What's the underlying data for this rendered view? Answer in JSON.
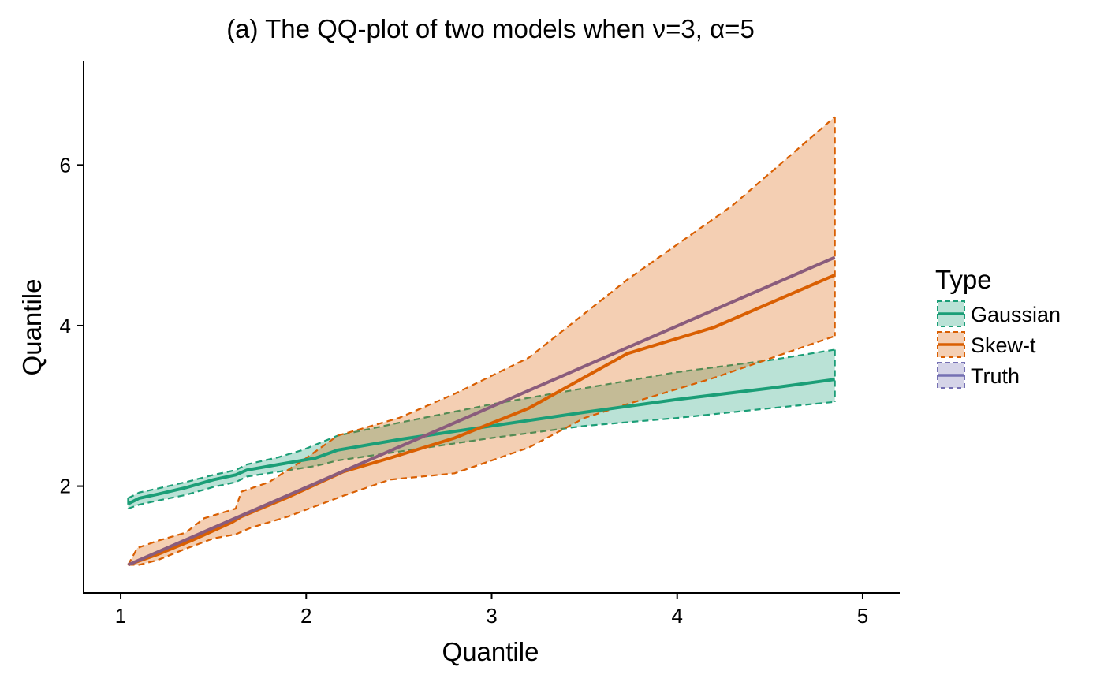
{
  "chart_data": {
    "type": "line",
    "title": "(a) The QQ-plot of two models when ν=3, α=5",
    "xlabel": "Quantile",
    "ylabel": "Quantile",
    "xlim": [
      0.8,
      5.2
    ],
    "ylim": [
      0.67,
      7.3
    ],
    "xticks": [
      1,
      2,
      3,
      4,
      5
    ],
    "yticks": [
      2,
      4,
      6
    ],
    "grid": false,
    "legend": {
      "title": "Type",
      "position": "right"
    },
    "series": [
      {
        "name": "Gaussian",
        "color": "#1b9e77",
        "fill_opacity": 0.3,
        "line": [
          [
            1.04,
            1.78
          ],
          [
            1.1,
            1.85
          ],
          [
            1.2,
            1.9
          ],
          [
            1.35,
            1.98
          ],
          [
            1.5,
            2.08
          ],
          [
            1.62,
            2.14
          ],
          [
            1.68,
            2.2
          ],
          [
            1.85,
            2.27
          ],
          [
            2.05,
            2.35
          ],
          [
            2.17,
            2.45
          ],
          [
            2.5,
            2.58
          ],
          [
            3.0,
            2.75
          ],
          [
            3.5,
            2.92
          ],
          [
            4.0,
            3.08
          ],
          [
            4.5,
            3.22
          ],
          [
            4.85,
            3.33
          ]
        ],
        "upper": [
          [
            1.04,
            1.85
          ],
          [
            1.1,
            1.92
          ],
          [
            1.2,
            1.97
          ],
          [
            1.35,
            2.05
          ],
          [
            1.5,
            2.14
          ],
          [
            1.62,
            2.2
          ],
          [
            1.68,
            2.27
          ],
          [
            1.85,
            2.36
          ],
          [
            1.98,
            2.45
          ],
          [
            2.17,
            2.63
          ],
          [
            2.5,
            2.79
          ],
          [
            3.0,
            3.02
          ],
          [
            3.5,
            3.22
          ],
          [
            4.0,
            3.42
          ],
          [
            4.5,
            3.57
          ],
          [
            4.85,
            3.7
          ]
        ],
        "lower": [
          [
            1.04,
            1.72
          ],
          [
            1.1,
            1.77
          ],
          [
            1.2,
            1.82
          ],
          [
            1.35,
            1.89
          ],
          [
            1.5,
            1.99
          ],
          [
            1.62,
            2.05
          ],
          [
            1.68,
            2.12
          ],
          [
            1.85,
            2.18
          ],
          [
            2.05,
            2.25
          ],
          [
            2.17,
            2.32
          ],
          [
            2.5,
            2.43
          ],
          [
            3.0,
            2.6
          ],
          [
            3.5,
            2.75
          ],
          [
            4.0,
            2.85
          ],
          [
            4.5,
            2.97
          ],
          [
            4.85,
            3.05
          ]
        ]
      },
      {
        "name": "Skew-t",
        "color": "#d95f02",
        "fill_opacity": 0.3,
        "line": [
          [
            1.04,
            1.02
          ],
          [
            1.2,
            1.15
          ],
          [
            1.38,
            1.32
          ],
          [
            1.6,
            1.55
          ],
          [
            1.65,
            1.62
          ],
          [
            1.9,
            1.86
          ],
          [
            2.2,
            2.18
          ],
          [
            2.45,
            2.35
          ],
          [
            2.8,
            2.6
          ],
          [
            3.2,
            2.97
          ],
          [
            3.73,
            3.65
          ],
          [
            4.2,
            3.98
          ],
          [
            4.85,
            4.63
          ]
        ],
        "upper": [
          [
            1.04,
            1.02
          ],
          [
            1.09,
            1.23
          ],
          [
            1.2,
            1.32
          ],
          [
            1.35,
            1.42
          ],
          [
            1.45,
            1.6
          ],
          [
            1.62,
            1.72
          ],
          [
            1.65,
            1.93
          ],
          [
            1.8,
            2.05
          ],
          [
            2.0,
            2.35
          ],
          [
            2.17,
            2.63
          ],
          [
            2.5,
            2.85
          ],
          [
            2.8,
            3.15
          ],
          [
            3.2,
            3.6
          ],
          [
            3.73,
            4.57
          ],
          [
            4.3,
            5.5
          ],
          [
            4.85,
            6.6
          ]
        ],
        "lower": [
          [
            1.04,
            1.02
          ],
          [
            1.1,
            1.02
          ],
          [
            1.2,
            1.08
          ],
          [
            1.35,
            1.22
          ],
          [
            1.5,
            1.35
          ],
          [
            1.62,
            1.4
          ],
          [
            1.7,
            1.48
          ],
          [
            1.9,
            1.62
          ],
          [
            2.2,
            1.88
          ],
          [
            2.45,
            2.08
          ],
          [
            2.8,
            2.16
          ],
          [
            3.2,
            2.48
          ],
          [
            3.5,
            2.85
          ],
          [
            3.73,
            3.02
          ],
          [
            4.2,
            3.35
          ],
          [
            4.85,
            3.87
          ]
        ]
      },
      {
        "name": "Truth",
        "color": "#7570b3",
        "fill_opacity": 0.3,
        "line_color": "#8a5c7c",
        "line": [
          [
            1.04,
            1.02
          ],
          [
            4.85,
            4.85
          ]
        ]
      }
    ]
  }
}
